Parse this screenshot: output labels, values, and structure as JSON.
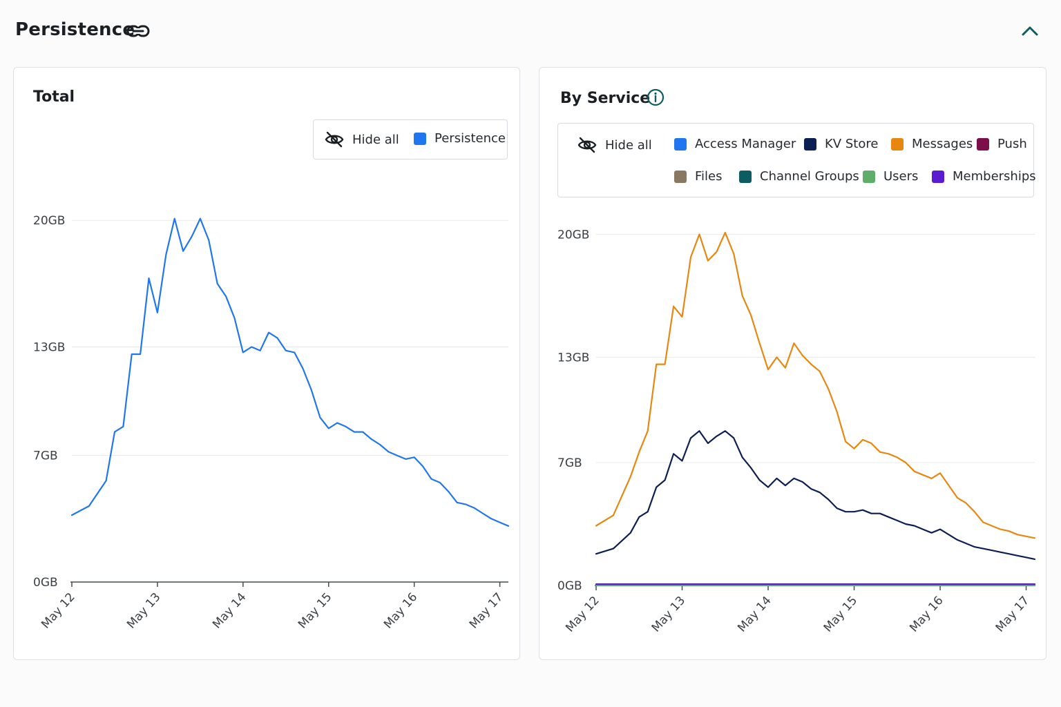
{
  "header": {
    "title": "Persistence",
    "link_icon": "link-icon",
    "collapse_icon": "chevron-up-icon"
  },
  "colors": {
    "persistence": "#1f76ef",
    "access_manager": "#1f76ef",
    "kv_store": "#0c1f52",
    "messages": "#e8870f",
    "push": "#7a0f4a",
    "files": "#8a7762",
    "channel_groups": "#0d5c61",
    "users": "#5eae6a",
    "memberships": "#5b1bd1",
    "grid": "#e6e8eb",
    "axis": "#444a50"
  },
  "total_card": {
    "title": "Total",
    "legend": {
      "hide_all": "Hide all",
      "items": [
        {
          "label": "Persistence",
          "color": "#1f76ef"
        }
      ]
    }
  },
  "service_card": {
    "title": "By Service",
    "info_icon": "info-icon",
    "legend": {
      "hide_all": "Hide all",
      "items": [
        {
          "label": "Access Manager",
          "color": "#1f76ef"
        },
        {
          "label": "KV Store",
          "color": "#0c1f52"
        },
        {
          "label": "Messages",
          "color": "#e8870f"
        },
        {
          "label": "Push",
          "color": "#7a0f4a"
        },
        {
          "label": "Files",
          "color": "#8a7762"
        },
        {
          "label": "Channel Groups",
          "color": "#0d5c61"
        },
        {
          "label": "Users",
          "color": "#5eae6a"
        },
        {
          "label": "Memberships",
          "color": "#5b1bd1"
        }
      ]
    }
  },
  "chart_data": [
    {
      "type": "line",
      "title": "Total",
      "xlabel": "",
      "ylabel": "",
      "x_ticks": [
        "May 12",
        "May 13",
        "May 14",
        "May 15",
        "May 16",
        "May 17"
      ],
      "y_ticks": [
        "0GB",
        "7GB",
        "13GB",
        "20GB"
      ],
      "y_tick_values": [
        0,
        7,
        13,
        20
      ],
      "xlim": [
        0,
        5.1
      ],
      "ylim": [
        0,
        21
      ],
      "grid": true,
      "legend_position": "top-right",
      "series": [
        {
          "name": "Persistence",
          "color": "#1f76ef",
          "x": [
            0,
            0.2,
            0.4,
            0.5,
            0.6,
            0.7,
            0.8,
            0.9,
            1.0,
            1.1,
            1.2,
            1.3,
            1.4,
            1.5,
            1.6,
            1.7,
            1.8,
            1.9,
            2.0,
            2.1,
            2.2,
            2.3,
            2.4,
            2.5,
            2.6,
            2.7,
            2.8,
            2.9,
            3.0,
            3.1,
            3.2,
            3.3,
            3.4,
            3.5,
            3.6,
            3.7,
            3.8,
            3.9,
            4.0,
            4.1,
            4.2,
            4.3,
            4.4,
            4.5,
            4.6,
            4.7,
            4.8,
            4.9,
            5.0,
            5.1
          ],
          "values": [
            3.7,
            4.2,
            5.6,
            8.3,
            8.6,
            12.6,
            12.6,
            16.8,
            14.9,
            18.1,
            20.1,
            18.3,
            19.1,
            20.1,
            18.9,
            16.5,
            15.8,
            14.6,
            12.7,
            13.0,
            12.8,
            13.8,
            13.5,
            12.8,
            12.7,
            11.8,
            10.6,
            9.1,
            8.5,
            8.8,
            8.6,
            8.3,
            8.3,
            7.9,
            7.6,
            7.2,
            7.0,
            6.8,
            6.9,
            6.4,
            5.7,
            5.5,
            5.0,
            4.4,
            4.3,
            4.1,
            3.8,
            3.5,
            3.3,
            3.1
          ]
        }
      ]
    },
    {
      "type": "line",
      "title": "By Service",
      "xlabel": "",
      "ylabel": "",
      "x_ticks": [
        "May 12",
        "May 13",
        "May 14",
        "May 15",
        "May 16",
        "May 17"
      ],
      "y_ticks": [
        "0GB",
        "7GB",
        "13GB",
        "20GB"
      ],
      "y_tick_values": [
        0,
        7,
        13,
        20
      ],
      "xlim": [
        0,
        5.1
      ],
      "ylim": [
        0,
        21
      ],
      "grid": true,
      "legend_position": "top",
      "series": [
        {
          "name": "Messages",
          "color": "#e8870f",
          "x": [
            0,
            0.2,
            0.4,
            0.5,
            0.6,
            0.7,
            0.8,
            0.9,
            1.0,
            1.1,
            1.2,
            1.3,
            1.4,
            1.5,
            1.6,
            1.7,
            1.8,
            1.9,
            2.0,
            2.1,
            2.2,
            2.3,
            2.4,
            2.5,
            2.6,
            2.7,
            2.8,
            2.9,
            3.0,
            3.1,
            3.2,
            3.3,
            3.4,
            3.5,
            3.6,
            3.7,
            3.8,
            3.9,
            4.0,
            4.1,
            4.2,
            4.3,
            4.4,
            4.5,
            4.6,
            4.7,
            4.8,
            4.9,
            5.0,
            5.1
          ],
          "values": [
            3.4,
            4.0,
            6.2,
            7.6,
            8.8,
            12.6,
            12.6,
            15.9,
            15.3,
            18.7,
            20.0,
            18.5,
            19.0,
            20.1,
            18.9,
            16.5,
            15.4,
            13.8,
            12.3,
            13.0,
            12.4,
            13.8,
            13.1,
            12.6,
            12.2,
            11.2,
            9.9,
            8.2,
            7.8,
            8.3,
            8.1,
            7.6,
            7.5,
            7.3,
            7.0,
            6.5,
            6.3,
            6.1,
            6.4,
            5.7,
            5.0,
            4.7,
            4.2,
            3.6,
            3.4,
            3.2,
            3.1,
            2.9,
            2.8,
            2.7
          ]
        },
        {
          "name": "KV Store",
          "color": "#0c1f52",
          "x": [
            0,
            0.2,
            0.4,
            0.5,
            0.6,
            0.7,
            0.8,
            0.9,
            1.0,
            1.1,
            1.2,
            1.3,
            1.4,
            1.5,
            1.6,
            1.7,
            1.8,
            1.9,
            2.0,
            2.1,
            2.2,
            2.3,
            2.4,
            2.5,
            2.6,
            2.7,
            2.8,
            2.9,
            3.0,
            3.1,
            3.2,
            3.3,
            3.4,
            3.5,
            3.6,
            3.7,
            3.8,
            3.9,
            4.0,
            4.1,
            4.2,
            4.3,
            4.4,
            4.5,
            4.6,
            4.7,
            4.8,
            4.9,
            5.0,
            5.1
          ],
          "values": [
            1.8,
            2.1,
            3.0,
            3.9,
            4.2,
            5.6,
            6.0,
            7.5,
            7.1,
            8.4,
            8.8,
            8.1,
            8.5,
            8.8,
            8.4,
            7.3,
            6.7,
            6.0,
            5.6,
            6.1,
            5.7,
            6.1,
            5.9,
            5.5,
            5.3,
            4.9,
            4.4,
            4.2,
            4.2,
            4.3,
            4.1,
            4.1,
            3.9,
            3.7,
            3.5,
            3.4,
            3.2,
            3.0,
            3.2,
            2.9,
            2.6,
            2.4,
            2.2,
            2.1,
            2.0,
            1.9,
            1.8,
            1.7,
            1.6,
            1.5
          ]
        },
        {
          "name": "Access Manager",
          "color": "#1f76ef",
          "x": [
            0,
            5.1
          ],
          "values": [
            0.04,
            0.04
          ]
        },
        {
          "name": "Push",
          "color": "#7a0f4a",
          "x": [
            0,
            5.1
          ],
          "values": [
            0.05,
            0.05
          ]
        },
        {
          "name": "Files",
          "color": "#8a7762",
          "x": [
            0,
            5.1
          ],
          "values": [
            0.02,
            0.02
          ]
        },
        {
          "name": "Channel Groups",
          "color": "#0d5c61",
          "x": [
            0,
            5.1
          ],
          "values": [
            0.01,
            0.01
          ]
        },
        {
          "name": "Users",
          "color": "#5eae6a",
          "x": [
            0,
            5.1
          ],
          "values": [
            0.0,
            0.0
          ]
        },
        {
          "name": "Memberships",
          "color": "#5b1bd1",
          "x": [
            0,
            5.1
          ],
          "values": [
            0.08,
            0.08
          ]
        }
      ]
    }
  ]
}
